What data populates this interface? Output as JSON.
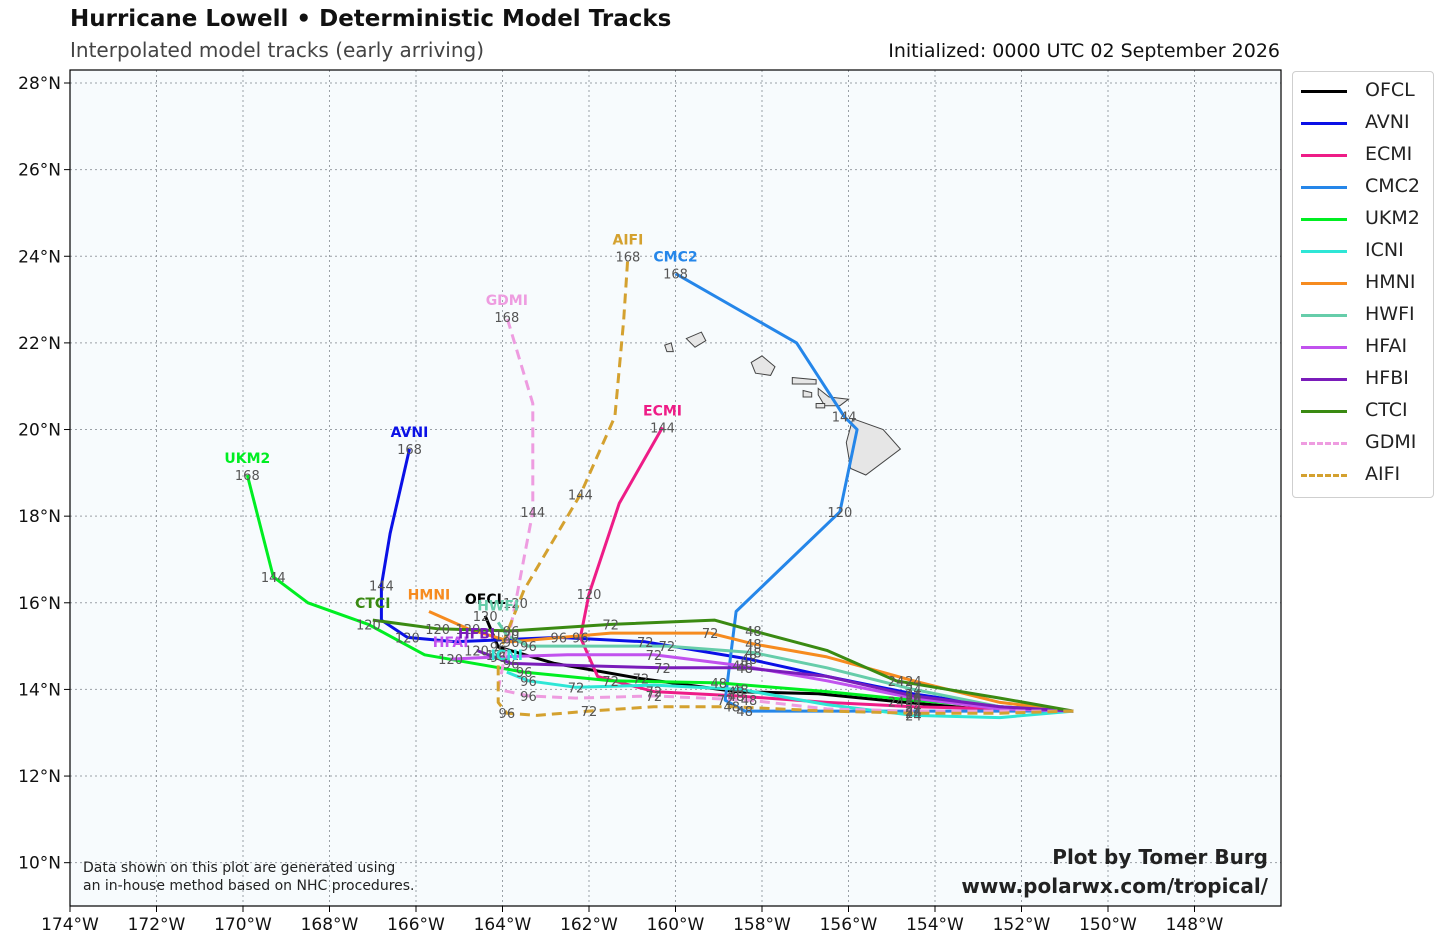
{
  "header": {
    "title": "Hurricane Lowell • Deterministic Model Tracks",
    "subtitle": "Interpolated model tracks (early arriving)",
    "initialized": "Initialized: 0000 UTC 02 September 2026"
  },
  "footer": {
    "note_line1": "Data shown on this plot are generated using",
    "note_line2": "an in-house method based on NHC procedures.",
    "credit_line1": "Plot by Tomer Burg",
    "credit_line2": "www.polarwx.com/tropical/"
  },
  "chart_data": {
    "type": "line",
    "xlim": [
      -174,
      -146
    ],
    "ylim": [
      9,
      28.3
    ],
    "x_ticks": [
      -174,
      -172,
      -170,
      -168,
      -166,
      -164,
      -162,
      -160,
      -158,
      -156,
      -154,
      -152,
      -150,
      -148
    ],
    "x_tick_labels": [
      "174°W",
      "172°W",
      "170°W",
      "168°W",
      "166°W",
      "164°W",
      "162°W",
      "160°W",
      "158°W",
      "156°W",
      "154°W",
      "152°W",
      "150°W",
      "148°W"
    ],
    "y_ticks": [
      10,
      12,
      14,
      16,
      18,
      20,
      22,
      24,
      26,
      28
    ],
    "y_tick_labels": [
      "10°N",
      "12°N",
      "14°N",
      "16°N",
      "18°N",
      "20°N",
      "22°N",
      "24°N",
      "26°N",
      "28°N"
    ],
    "grid": true,
    "legend_position": "outside-right",
    "series": [
      {
        "name": "OFCL",
        "color": "#000000",
        "dash": false,
        "end_label": "OFCL",
        "points": [
          [
            -150.8,
            13.5
          ],
          [
            -153,
            13.55
          ],
          [
            -154.9,
            13.72
          ],
          [
            -156.7,
            13.9
          ],
          [
            -158.6,
            13.95
          ],
          [
            -160.8,
            14.25
          ],
          [
            -162.8,
            14.6
          ],
          [
            -164.1,
            14.98
          ],
          [
            -164.4,
            15.7
          ]
        ],
        "hours": [
          {
            "h": "24",
            "i": 2
          },
          {
            "h": "48",
            "i": 4
          },
          {
            "h": "72",
            "i": 5
          },
          {
            "h": "96",
            "i": 7
          },
          {
            "h": "120",
            "i": 8
          }
        ]
      },
      {
        "name": "AVNI",
        "color": "#0a10e6",
        "dash": false,
        "end_label": "AVNI",
        "points": [
          [
            -150.8,
            13.5
          ],
          [
            -152.5,
            13.6
          ],
          [
            -154.5,
            13.9
          ],
          [
            -156.5,
            14.3
          ],
          [
            -158.3,
            14.7
          ],
          [
            -160.7,
            15.1
          ],
          [
            -162.7,
            15.2
          ],
          [
            -165.1,
            15.1
          ],
          [
            -166.2,
            15.2
          ],
          [
            -166.8,
            15.6
          ],
          [
            -166.8,
            16.4
          ],
          [
            -166.6,
            17.6
          ],
          [
            -166.15,
            19.55
          ]
        ],
        "hours": [
          {
            "h": "24",
            "i": 2
          },
          {
            "h": "48",
            "i": 4
          },
          {
            "h": "72",
            "i": 5
          },
          {
            "h": "96",
            "i": 6
          },
          {
            "h": "120",
            "i": 8
          },
          {
            "h": "144",
            "i": 10
          },
          {
            "h": "168",
            "i": 12
          }
        ]
      },
      {
        "name": "ECMI",
        "color": "#ee1c87",
        "dash": false,
        "end_label": "ECMI",
        "points": [
          [
            -150.8,
            13.5
          ],
          [
            -152.5,
            13.55
          ],
          [
            -154.5,
            13.6
          ],
          [
            -156.5,
            13.7
          ],
          [
            -158.6,
            13.85
          ],
          [
            -160.5,
            13.95
          ],
          [
            -161.8,
            14.3
          ],
          [
            -162.2,
            15.2
          ],
          [
            -162,
            16.2
          ],
          [
            -161.3,
            18.3
          ],
          [
            -160.3,
            20.05
          ]
        ],
        "hours": [
          {
            "h": "24",
            "i": 2
          },
          {
            "h": "48",
            "i": 4
          },
          {
            "h": "72",
            "i": 5
          },
          {
            "h": "96",
            "i": 7
          },
          {
            "h": "120",
            "i": 8
          },
          {
            "h": "144",
            "i": 10
          }
        ]
      },
      {
        "name": "CMC2",
        "color": "#2586e9",
        "dash": false,
        "end_label": "CMC2",
        "points": [
          [
            -150.8,
            13.5
          ],
          [
            -152.5,
            13.5
          ],
          [
            -154.5,
            13.5
          ],
          [
            -156.5,
            13.5
          ],
          [
            -158.4,
            13.5
          ],
          [
            -158.85,
            13.75
          ],
          [
            -158.6,
            15.8
          ],
          [
            -156.2,
            18.1
          ],
          [
            -155.8,
            20.0
          ],
          [
            -156.1,
            20.3
          ],
          [
            -157.2,
            22.0
          ],
          [
            -160,
            23.6
          ]
        ],
        "hours": [
          {
            "h": "24",
            "i": 2
          },
          {
            "h": "48",
            "i": 4
          },
          {
            "h": "72",
            "i": 5
          },
          {
            "h": "120",
            "i": 7
          },
          {
            "h": "144",
            "i": 9
          },
          {
            "h": "168",
            "i": 11
          }
        ]
      },
      {
        "name": "UKM2",
        "color": "#00ee22",
        "dash": false,
        "end_label": "UKM2",
        "points": [
          [
            -150.8,
            13.5
          ],
          [
            -152.5,
            13.6
          ],
          [
            -154.5,
            13.75
          ],
          [
            -156.5,
            13.95
          ],
          [
            -159,
            14.15
          ],
          [
            -161.5,
            14.2
          ],
          [
            -163.5,
            14.4
          ],
          [
            -165.8,
            14.8
          ],
          [
            -167.1,
            15.5
          ],
          [
            -168.5,
            16
          ],
          [
            -169.3,
            16.6
          ],
          [
            -169.9,
            18.95
          ]
        ],
        "hours": [
          {
            "h": "24",
            "i": 2
          },
          {
            "h": "48",
            "i": 4
          },
          {
            "h": "72",
            "i": 5
          },
          {
            "h": "96",
            "i": 6
          },
          {
            "h": "120",
            "i": 8
          },
          {
            "h": "144",
            "i": 10
          },
          {
            "h": "168",
            "i": 11
          }
        ]
      },
      {
        "name": "ICNI",
        "color": "#2ee6d6",
        "dash": false,
        "end_label": "ICNI",
        "points": [
          [
            -150.8,
            13.5
          ],
          [
            -152.5,
            13.35
          ],
          [
            -154.5,
            13.4
          ],
          [
            -156.5,
            13.65
          ],
          [
            -158.5,
            14.0
          ],
          [
            -160.5,
            14.1
          ],
          [
            -162.3,
            14.05
          ],
          [
            -163.4,
            14.2
          ],
          [
            -163.9,
            14.4
          ]
        ],
        "hours": [
          {
            "h": "24",
            "i": 2
          },
          {
            "h": "48",
            "i": 4
          },
          {
            "h": "72",
            "i": 6
          },
          {
            "h": "96",
            "i": 7
          }
        ]
      },
      {
        "name": "HMNI",
        "color": "#f68b1f",
        "dash": false,
        "end_label": "HMNI",
        "points": [
          [
            -150.8,
            13.5
          ],
          [
            -152.5,
            13.7
          ],
          [
            -154.5,
            14.2
          ],
          [
            -156.5,
            14.75
          ],
          [
            -158.2,
            15.05
          ],
          [
            -159.2,
            15.3
          ],
          [
            -161.5,
            15.3
          ],
          [
            -163.8,
            15.1
          ],
          [
            -164.8,
            15.4
          ],
          [
            -165.7,
            15.8
          ]
        ],
        "hours": [
          {
            "h": "24",
            "i": 2
          },
          {
            "h": "48",
            "i": 4
          },
          {
            "h": "72",
            "i": 5
          },
          {
            "h": "96",
            "i": 7
          },
          {
            "h": "120",
            "i": 8
          }
        ]
      },
      {
        "name": "HWFI",
        "color": "#66cdaa",
        "dash": false,
        "end_label": "HWFI",
        "points": [
          [
            -150.8,
            13.5
          ],
          [
            -152.5,
            13.6
          ],
          [
            -154.5,
            14.0
          ],
          [
            -156.5,
            14.5
          ],
          [
            -158.2,
            14.85
          ],
          [
            -160.2,
            15.0
          ],
          [
            -161.8,
            15.0
          ],
          [
            -163.4,
            15.0
          ],
          [
            -163.9,
            15.25
          ],
          [
            -164.1,
            15.55
          ]
        ],
        "hours": [
          {
            "h": "24",
            "i": 2
          },
          {
            "h": "48",
            "i": 4
          },
          {
            "h": "72",
            "i": 5
          },
          {
            "h": "96",
            "i": 7
          },
          {
            "h": "120",
            "i": 8
          }
        ]
      },
      {
        "name": "HFAI",
        "color": "#c152ee",
        "dash": false,
        "end_label": "HFAI",
        "points": [
          [
            -150.8,
            13.5
          ],
          [
            -152.5,
            13.55
          ],
          [
            -154.5,
            13.8
          ],
          [
            -156.5,
            14.2
          ],
          [
            -158.5,
            14.55
          ],
          [
            -160.5,
            14.8
          ],
          [
            -162.5,
            14.8
          ],
          [
            -164.1,
            14.75
          ],
          [
            -165.2,
            14.7
          ]
        ],
        "hours": [
          {
            "h": "24",
            "i": 2
          },
          {
            "h": "48",
            "i": 4
          },
          {
            "h": "72",
            "i": 5
          },
          {
            "h": "96",
            "i": 7
          },
          {
            "h": "120",
            "i": 8
          }
        ]
      },
      {
        "name": "HFBI",
        "color": "#7a1cba",
        "dash": false,
        "end_label": "HFBI",
        "points": [
          [
            -150.8,
            13.5
          ],
          [
            -152.5,
            13.6
          ],
          [
            -154.5,
            13.85
          ],
          [
            -156.5,
            14.3
          ],
          [
            -158.4,
            14.5
          ],
          [
            -160.3,
            14.5
          ],
          [
            -162.2,
            14.55
          ],
          [
            -163.8,
            14.6
          ],
          [
            -164.6,
            14.9
          ]
        ],
        "hours": [
          {
            "h": "24",
            "i": 2
          },
          {
            "h": "48",
            "i": 4
          },
          {
            "h": "72",
            "i": 5
          },
          {
            "h": "96",
            "i": 7
          },
          {
            "h": "120",
            "i": 8
          }
        ]
      },
      {
        "name": "CTCI",
        "color": "#3a8a12",
        "dash": false,
        "end_label": "CTCI",
        "points": [
          [
            -150.8,
            13.5
          ],
          [
            -152.5,
            13.8
          ],
          [
            -154.9,
            14.2
          ],
          [
            -156.5,
            14.9
          ],
          [
            -158.2,
            15.35
          ],
          [
            -159.1,
            15.6
          ],
          [
            -161.5,
            15.5
          ],
          [
            -163.8,
            15.35
          ],
          [
            -165.5,
            15.4
          ],
          [
            -167,
            15.6
          ]
        ],
        "hours": [
          {
            "h": "24",
            "i": 2
          },
          {
            "h": "48",
            "i": 4
          },
          {
            "h": "72",
            "i": 6
          },
          {
            "h": "96",
            "i": 7
          },
          {
            "h": "120",
            "i": 8
          }
        ]
      },
      {
        "name": "GDMI",
        "color": "#ee9ce0",
        "dash": true,
        "end_label": "GDMI",
        "points": [
          [
            -150.8,
            13.5
          ],
          [
            -152.5,
            13.5
          ],
          [
            -154.5,
            13.5
          ],
          [
            -156.5,
            13.55
          ],
          [
            -158.3,
            13.75
          ],
          [
            -160.5,
            13.85
          ],
          [
            -162.3,
            13.8
          ],
          [
            -163.4,
            13.85
          ],
          [
            -164.1,
            14.0
          ],
          [
            -163.7,
            16.0
          ],
          [
            -163.3,
            18.1
          ],
          [
            -163.3,
            20.6
          ],
          [
            -163.9,
            22.6
          ]
        ],
        "hours": [
          {
            "h": "24",
            "i": 2
          },
          {
            "h": "48",
            "i": 4
          },
          {
            "h": "72",
            "i": 5
          },
          {
            "h": "96",
            "i": 7
          },
          {
            "h": "120",
            "i": 9
          },
          {
            "h": "144",
            "i": 10
          },
          {
            "h": "168",
            "i": 12
          }
        ]
      },
      {
        "name": "AIFI",
        "color": "#d4a12f",
        "dash": true,
        "end_label": "AIFI",
        "points": [
          [
            -150.8,
            13.5
          ],
          [
            -152.5,
            13.45
          ],
          [
            -154.5,
            13.45
          ],
          [
            -156.5,
            13.5
          ],
          [
            -158.7,
            13.6
          ],
          [
            -160.5,
            13.6
          ],
          [
            -162,
            13.5
          ],
          [
            -163.2,
            13.4
          ],
          [
            -163.9,
            13.45
          ],
          [
            -164.1,
            13.7
          ],
          [
            -164.1,
            14.8
          ],
          [
            -163.5,
            16.3
          ],
          [
            -162.2,
            18.5
          ],
          [
            -161.4,
            20.3
          ],
          [
            -161.2,
            22.5
          ],
          [
            -161.1,
            24.0
          ]
        ],
        "hours": [
          {
            "h": "24",
            "i": 2
          },
          {
            "h": "48",
            "i": 4
          },
          {
            "h": "72",
            "i": 6
          },
          {
            "h": "96",
            "i": 8
          },
          {
            "h": "120",
            "i": 10
          },
          {
            "h": "144",
            "i": 12
          },
          {
            "h": "168",
            "i": 15
          }
        ]
      }
    ]
  }
}
